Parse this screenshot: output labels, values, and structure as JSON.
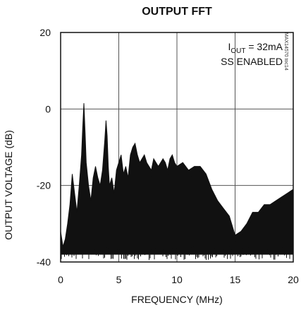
{
  "chart_data": {
    "type": "area",
    "title": "OUTPUT FFT",
    "xlabel": "FREQUENCY (MHz)",
    "ylabel": "OUTPUT VOLTAGE (dB)",
    "xlim": [
      0,
      20
    ],
    "ylim": [
      -40,
      20
    ],
    "xticks": [
      0,
      5,
      10,
      15,
      20
    ],
    "yticks": [
      -40,
      -20,
      0,
      20
    ],
    "grid": true,
    "annotations": {
      "line1_prefix": "I",
      "line1_sub": "OUT",
      "line1_suffix": " = 32mA",
      "line2": "SS ENABLED"
    },
    "watermark": "MAX14570 toc14",
    "series": [
      {
        "color": "#111111",
        "x": [
          0,
          0.2,
          0.4,
          0.6,
          0.8,
          1.0,
          1.2,
          1.4,
          1.6,
          1.8,
          1.9,
          2.0,
          2.1,
          2.2,
          2.4,
          2.6,
          2.8,
          3.0,
          3.2,
          3.4,
          3.6,
          3.8,
          3.9,
          4.0,
          4.1,
          4.2,
          4.4,
          4.6,
          4.8,
          5.0,
          5.2,
          5.4,
          5.6,
          5.8,
          6.0,
          6.2,
          6.4,
          6.6,
          6.8,
          7.0,
          7.2,
          7.4,
          7.6,
          7.8,
          8.0,
          8.2,
          8.4,
          8.6,
          8.8,
          9.0,
          9.2,
          9.4,
          9.6,
          9.8,
          10.0,
          10.5,
          11.0,
          11.5,
          12.0,
          12.5,
          13.0,
          13.5,
          14.0,
          14.5,
          15.0,
          15.5,
          16.0,
          16.5,
          17.0,
          17.5,
          18.0,
          18.5,
          19.0,
          19.5,
          20.0
        ],
        "y": [
          -32,
          -36,
          -34,
          -30,
          -25,
          -17,
          -22,
          -27,
          -20,
          -12,
          -5,
          1.5,
          -6,
          -14,
          -20,
          -24,
          -18,
          -15,
          -18,
          -20,
          -16,
          -8,
          -3,
          -7,
          -15,
          -20,
          -18,
          -22,
          -16,
          -14,
          -12,
          -17,
          -15,
          -18,
          -12,
          -10,
          -9,
          -12,
          -14,
          -13,
          -12,
          -14,
          -15,
          -16,
          -13,
          -14,
          -15,
          -14,
          -13,
          -14,
          -16,
          -13,
          -12,
          -14,
          -15,
          -14,
          -16,
          -15,
          -15,
          -17,
          -21,
          -24,
          -26,
          -28,
          -33,
          -32,
          -30,
          -27,
          -27,
          -25,
          -25,
          -24,
          -23,
          -22,
          -21
        ]
      }
    ]
  }
}
